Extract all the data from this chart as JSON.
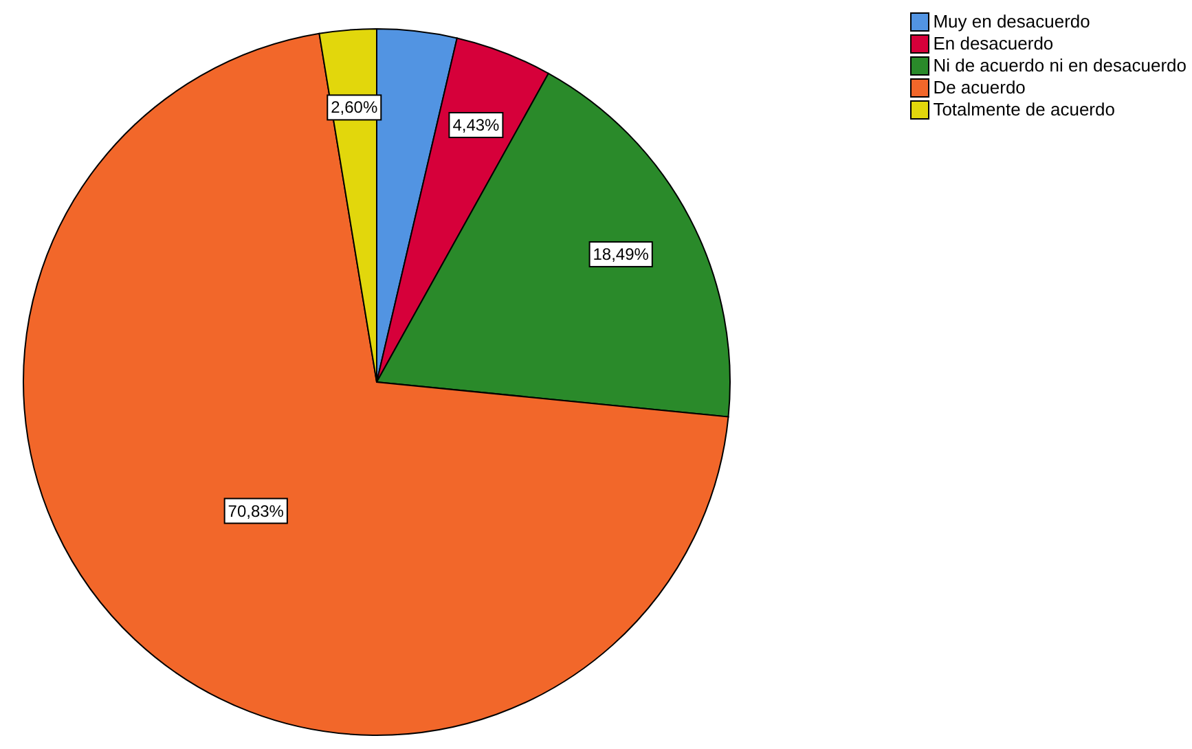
{
  "chart_data": {
    "type": "pie",
    "categories": [
      "Muy en desacuerdo",
      "En desacuerdo",
      "Ni de acuerdo ni en desacuerdo",
      "De acuerdo",
      "Totalmente de acuerdo"
    ],
    "values": [
      3.65,
      4.43,
      18.49,
      70.83,
      2.6
    ],
    "colors": [
      "#5294e2",
      "#d6003a",
      "#2a8a2a",
      "#f2672a",
      "#e2d70c"
    ],
    "value_labels": [
      null,
      "4,43%",
      "18,49%",
      "70,83%",
      "2,60%"
    ],
    "legend": "top right"
  }
}
